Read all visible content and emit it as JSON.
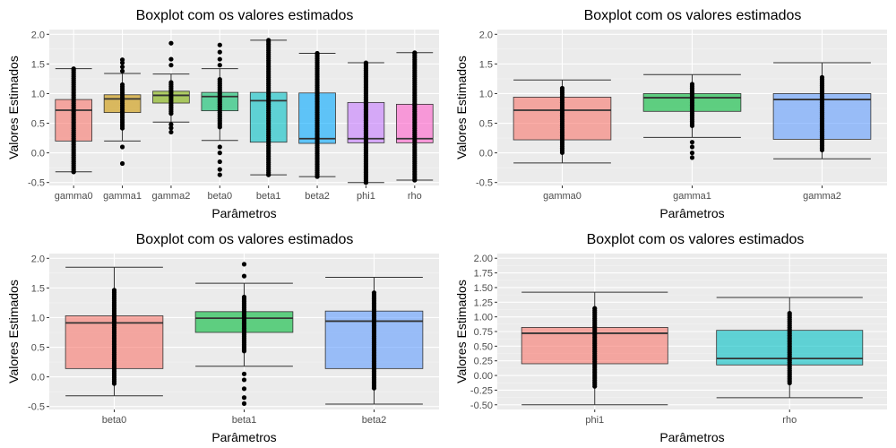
{
  "colors": {
    "panel_bg": "#ebebeb",
    "grid_major": "#ffffff",
    "grid_minor": "#f4f4f4",
    "tick_text": "#4d4d4d",
    "box_line": "#333333",
    "points": "#000000"
  },
  "chart_data": [
    {
      "type": "boxplot",
      "title": "Boxplot com os valores estimados",
      "xlabel": "Parâmetros",
      "ylabel": "Valores Estimados",
      "ylim": [
        -0.55,
        2.08
      ],
      "yticks": [
        -0.5,
        0.0,
        0.5,
        1.0,
        1.5,
        2.0
      ],
      "ytick_labels": [
        "-0.5",
        "0.0",
        "0.5",
        "1.0",
        "1.5",
        "2.0"
      ],
      "grid": true,
      "categories": [
        "gamma0",
        "gamma1",
        "gamma2",
        "beta0",
        "beta1",
        "beta2",
        "phi1",
        "rho"
      ],
      "fill_colors": [
        "#f8766d",
        "#cd9600",
        "#7cae00",
        "#00be67",
        "#00bfc4",
        "#00a9ff",
        "#c77cff",
        "#ff61cc"
      ],
      "boxes": [
        {
          "whisker_low": -0.32,
          "q1": 0.2,
          "median": 0.72,
          "q3": 0.9,
          "whisker_high": 1.42,
          "out_low": [],
          "out_high": []
        },
        {
          "whisker_low": 0.2,
          "q1": 0.68,
          "median": 0.91,
          "q3": 0.98,
          "whisker_high": 1.34,
          "out_low": [
            -0.18,
            0.1
          ],
          "out_high": [
            1.38,
            1.45,
            1.52,
            1.57
          ]
        },
        {
          "whisker_low": 0.52,
          "q1": 0.84,
          "median": 0.97,
          "q3": 1.04,
          "whisker_high": 1.33,
          "out_low": [
            0.35,
            0.42,
            0.48
          ],
          "out_high": [
            1.48,
            1.58,
            1.85
          ]
        },
        {
          "whisker_low": 0.21,
          "q1": 0.71,
          "median": 0.95,
          "q3": 1.02,
          "whisker_high": 1.42,
          "out_low": [
            -0.37,
            -0.28,
            -0.15,
            0.0,
            0.1
          ],
          "out_high": [
            1.48,
            1.58,
            1.7,
            1.82
          ]
        },
        {
          "whisker_low": -0.37,
          "q1": 0.18,
          "median": 0.88,
          "q3": 1.02,
          "whisker_high": 1.9,
          "out_low": [],
          "out_high": []
        },
        {
          "whisker_low": -0.4,
          "q1": 0.16,
          "median": 0.24,
          "q3": 1.01,
          "whisker_high": 1.68,
          "out_low": [],
          "out_high": []
        },
        {
          "whisker_low": -0.5,
          "q1": 0.17,
          "median": 0.24,
          "q3": 0.85,
          "whisker_high": 1.52,
          "out_low": [],
          "out_high": []
        },
        {
          "whisker_low": -0.46,
          "q1": 0.17,
          "median": 0.24,
          "q3": 0.82,
          "whisker_high": 1.69,
          "out_low": [],
          "out_high": []
        }
      ]
    },
    {
      "type": "boxplot",
      "title": "Boxplot com os valores estimados",
      "xlabel": "Parâmetros",
      "ylabel": "Valores Estimados",
      "ylim": [
        -0.55,
        2.08
      ],
      "yticks": [
        -0.5,
        0.0,
        0.5,
        1.0,
        1.5,
        2.0
      ],
      "ytick_labels": [
        "-0.5",
        "0.0",
        "0.5",
        "1.0",
        "1.5",
        "2.0"
      ],
      "grid": true,
      "categories": [
        "gamma0",
        "gamma1",
        "gamma2"
      ],
      "fill_colors": [
        "#f8766d",
        "#00ba38",
        "#619cff"
      ],
      "boxes": [
        {
          "whisker_low": -0.17,
          "q1": 0.22,
          "median": 0.72,
          "q3": 0.94,
          "whisker_high": 1.23,
          "out_low": [],
          "out_high": []
        },
        {
          "whisker_low": 0.26,
          "q1": 0.7,
          "median": 0.93,
          "q3": 1.0,
          "whisker_high": 1.32,
          "out_low": [
            -0.08,
            0.0,
            0.1,
            0.18
          ],
          "out_high": []
        },
        {
          "whisker_low": -0.1,
          "q1": 0.23,
          "median": 0.9,
          "q3": 1.0,
          "whisker_high": 1.52,
          "out_low": [],
          "out_high": []
        }
      ]
    },
    {
      "type": "boxplot",
      "title": "Boxplot com os valores estimados",
      "xlabel": "Parâmetros",
      "ylabel": "Valores Estimados",
      "ylim": [
        -0.55,
        2.08
      ],
      "yticks": [
        -0.5,
        0.0,
        0.5,
        1.0,
        1.5,
        2.0
      ],
      "ytick_labels": [
        "-0.5",
        "0.0",
        "0.5",
        "1.0",
        "1.5",
        "2.0"
      ],
      "grid": true,
      "categories": [
        "beta0",
        "beta1",
        "beta2"
      ],
      "fill_colors": [
        "#f8766d",
        "#00ba38",
        "#619cff"
      ],
      "boxes": [
        {
          "whisker_low": -0.32,
          "q1": 0.14,
          "median": 0.91,
          "q3": 1.03,
          "whisker_high": 1.85,
          "out_low": [],
          "out_high": []
        },
        {
          "whisker_low": 0.18,
          "q1": 0.75,
          "median": 0.99,
          "q3": 1.1,
          "whisker_high": 1.58,
          "out_low": [
            -0.45,
            -0.35,
            -0.2,
            -0.05,
            0.05
          ],
          "out_high": [
            1.7,
            1.9
          ]
        },
        {
          "whisker_low": -0.46,
          "q1": 0.14,
          "median": 0.94,
          "q3": 1.11,
          "whisker_high": 1.68,
          "out_low": [],
          "out_high": []
        }
      ]
    },
    {
      "type": "boxplot",
      "title": "Boxplot com os valores estimados",
      "xlabel": "Parâmetros",
      "ylabel": "Valores Estimados",
      "ylim": [
        -0.58,
        2.08
      ],
      "yticks": [
        -0.5,
        -0.25,
        0.0,
        0.25,
        0.5,
        0.75,
        1.0,
        1.25,
        1.5,
        1.75,
        2.0
      ],
      "ytick_labels": [
        "-0.50",
        "-0.25",
        "0.00",
        "0.25",
        "0.50",
        "0.75",
        "1.00",
        "1.25",
        "1.50",
        "1.75",
        "2.00"
      ],
      "grid": true,
      "categories": [
        "phi1",
        "rho"
      ],
      "fill_colors": [
        "#f8766d",
        "#00bfc4"
      ],
      "boxes": [
        {
          "whisker_low": -0.5,
          "q1": 0.2,
          "median": 0.72,
          "q3": 0.82,
          "whisker_high": 1.42,
          "out_low": [],
          "out_high": []
        },
        {
          "whisker_low": -0.38,
          "q1": 0.18,
          "median": 0.29,
          "q3": 0.77,
          "whisker_high": 1.33,
          "out_low": [],
          "out_high": []
        }
      ]
    }
  ]
}
